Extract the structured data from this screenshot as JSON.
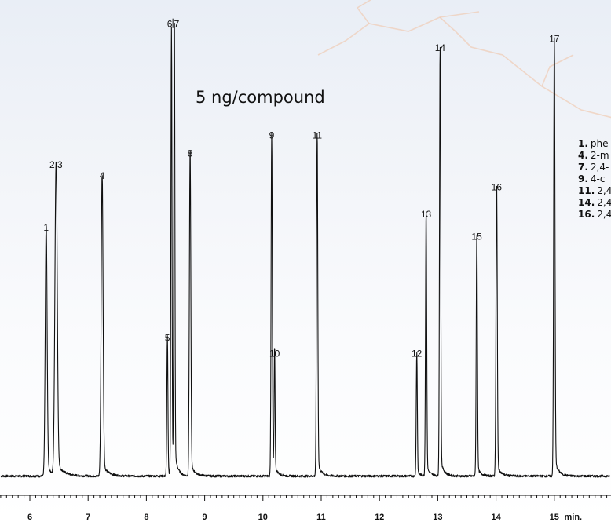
{
  "chart_data": {
    "type": "line",
    "title": "",
    "xlabel": "",
    "ylabel": "",
    "x_unit_label": "min.",
    "xlim": [
      5.5,
      15.95
    ],
    "ylim": [
      0,
      100
    ],
    "x_ticks": [
      6,
      7,
      8,
      9,
      10,
      11,
      12,
      13,
      14,
      15
    ],
    "minor_tick_step": 0.1,
    "annotation": "5 ng/compound",
    "grid": false,
    "baseline": 2,
    "peaks": [
      {
        "label": "1",
        "x": 6.28,
        "height": 55.5,
        "width": 0.016
      },
      {
        "label": "2,3",
        "x": 6.45,
        "height": 69.5,
        "width": 0.02
      },
      {
        "label": "4",
        "x": 7.24,
        "height": 67.0,
        "width": 0.016
      },
      {
        "label": "5",
        "x": 8.36,
        "height": 31.0,
        "width": 0.009
      },
      {
        "label": "6",
        "x": 8.43,
        "height": 99.5,
        "width": 0.009,
        "label_x": 8.4,
        "label_y": 101.8
      },
      {
        "label": "7",
        "x": 8.48,
        "height": 99.5,
        "width": 0.009,
        "label_x": 8.52,
        "label_y": 101.8
      },
      {
        "label": "8",
        "x": 8.75,
        "height": 72.0,
        "width": 0.012
      },
      {
        "label": "9",
        "x": 10.15,
        "height": 76.0,
        "width": 0.01
      },
      {
        "label": "10",
        "x": 10.2,
        "height": 27.5,
        "width": 0.008
      },
      {
        "label": "11",
        "x": 10.93,
        "height": 76.0,
        "width": 0.011
      },
      {
        "label": "12",
        "x": 12.64,
        "height": 27.5,
        "width": 0.009
      },
      {
        "label": "13",
        "x": 12.8,
        "height": 58.5,
        "width": 0.01
      },
      {
        "label": "14",
        "x": 13.04,
        "height": 95.5,
        "width": 0.01
      },
      {
        "label": "15",
        "x": 13.67,
        "height": 53.5,
        "width": 0.01
      },
      {
        "label": "16",
        "x": 14.01,
        "height": 64.5,
        "width": 0.011
      },
      {
        "label": "17",
        "x": 15.0,
        "height": 97.5,
        "width": 0.011
      }
    ]
  },
  "legend": [
    {
      "num": "1.",
      "text": "phe"
    },
    {
      "num": "4.",
      "text": "2-m"
    },
    {
      "num": "7.",
      "text": "2,4-"
    },
    {
      "num": "9.",
      "text": "4-c"
    },
    {
      "num": "11.",
      "text": "2,4"
    },
    {
      "num": "14.",
      "text": "2,4"
    },
    {
      "num": "16.",
      "text": "2,4"
    }
  ],
  "colors": {
    "trace": "#111111",
    "background_top": "#e9eef6",
    "lightning": "#f0c4a8"
  }
}
